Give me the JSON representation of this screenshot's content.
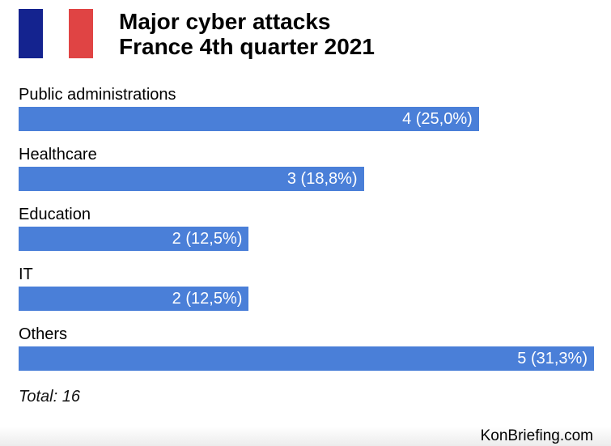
{
  "flag": {
    "blue": "#14238f",
    "white": "#ffffff",
    "red": "#e04444"
  },
  "title_line1": "Major cyber attacks",
  "title_line2": "France 4th quarter 2021",
  "chart_data": {
    "type": "bar",
    "orientation": "horizontal",
    "title": "Major cyber attacks France 4th quarter 2021",
    "categories": [
      "Public administrations",
      "Healthcare",
      "Education",
      "IT",
      "Others"
    ],
    "values": [
      4,
      3,
      2,
      2,
      5
    ],
    "value_labels": [
      "4 (25,0%)",
      "3 (18,8%)",
      "2 (12,5%)",
      "2 (12,5%)",
      "5 (31,3%)"
    ],
    "percent": [
      25.0,
      18.8,
      12.5,
      12.5,
      31.3
    ],
    "xlim": [
      0,
      5
    ],
    "grid": false,
    "bar_color": "#4a7fd8"
  },
  "total_label": "Total: 16",
  "source": "KonBriefing.com"
}
